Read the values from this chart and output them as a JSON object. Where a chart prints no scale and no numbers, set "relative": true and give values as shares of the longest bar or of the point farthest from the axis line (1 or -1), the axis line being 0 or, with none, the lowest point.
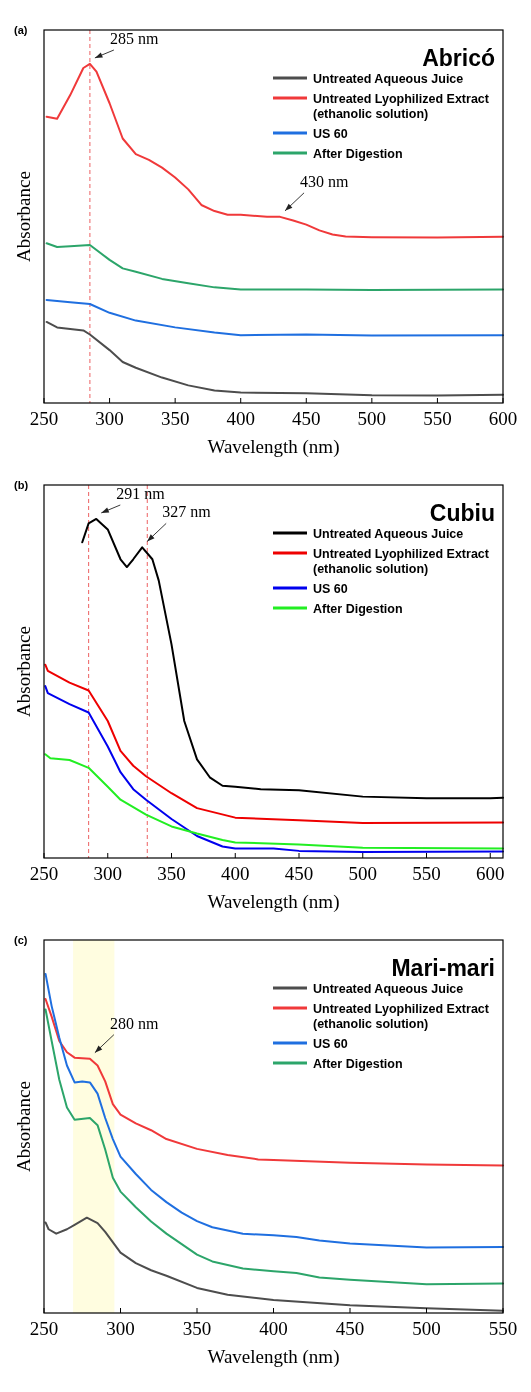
{
  "chart_data": [
    {
      "type": "line",
      "title": "Abricó",
      "xlabel": "Wavelength (nm)",
      "ylabel": "Absorbance",
      "relative": true,
      "xlim": [
        250,
        600
      ],
      "xticks": [
        250,
        300,
        350,
        400,
        450,
        500,
        550,
        600
      ],
      "legend": "top right",
      "annotations": [
        "(a)",
        {
          "text": "285 nm",
          "x": 285,
          "y": 1.0
        },
        {
          "text": "430 nm",
          "x": 430,
          "y": 0.549
        }
      ],
      "ref_lines": [
        {
          "axis": "x",
          "value": 285,
          "color": "#e8393a",
          "line_style": "dashed"
        }
      ],
      "series": [
        {
          "name": "Untreated Aqueous Juice",
          "color": "#4d4d4d",
          "x": [
            252,
            260,
            280,
            285,
            300,
            310,
            320,
            340,
            360,
            380,
            400,
            450,
            500,
            550,
            600
          ],
          "values": [
            0.239,
            0.223,
            0.214,
            0.202,
            0.156,
            0.121,
            0.104,
            0.075,
            0.052,
            0.037,
            0.031,
            0.029,
            0.023,
            0.022,
            0.024
          ]
        },
        {
          "name": "Untreated Lyophilized Extract (ethanolic solution)",
          "color": "#f0393a",
          "x": [
            252,
            260,
            270,
            280,
            285,
            290,
            300,
            310,
            320,
            330,
            340,
            350,
            360,
            370,
            380,
            390,
            400,
            420,
            430,
            440,
            450,
            460,
            470,
            480,
            500,
            550,
            600
          ],
          "values": [
            0.844,
            0.838,
            0.908,
            0.988,
            1.0,
            0.977,
            0.884,
            0.78,
            0.734,
            0.717,
            0.694,
            0.665,
            0.63,
            0.584,
            0.566,
            0.555,
            0.555,
            0.549,
            0.549,
            0.538,
            0.526,
            0.509,
            0.497,
            0.491,
            0.489,
            0.488,
            0.49
          ]
        },
        {
          "name": "US 60",
          "color": "#1f6fe0",
          "x": [
            252,
            270,
            285,
            300,
            320,
            350,
            380,
            400,
            450,
            500,
            600
          ],
          "values": [
            0.304,
            0.297,
            0.292,
            0.266,
            0.243,
            0.223,
            0.208,
            0.2,
            0.202,
            0.199,
            0.2
          ]
        },
        {
          "name": "After Digestion",
          "color": "#2ca56a",
          "x": [
            252,
            260,
            270,
            285,
            300,
            310,
            320,
            340,
            360,
            380,
            400,
            450,
            500,
            600
          ],
          "values": [
            0.471,
            0.46,
            0.462,
            0.466,
            0.422,
            0.397,
            0.387,
            0.366,
            0.353,
            0.341,
            0.335,
            0.335,
            0.333,
            0.335
          ]
        }
      ]
    },
    {
      "type": "line",
      "title": "Cubiu",
      "xlabel": "Wavelength (nm)",
      "ylabel": "Absorbance",
      "relative": true,
      "xlim": [
        250,
        610
      ],
      "xticks": [
        250,
        300,
        350,
        400,
        450,
        500,
        550,
        600
      ],
      "legend": "top right",
      "annotations": [
        "(b)",
        {
          "text": "291 nm",
          "x": 291,
          "y": 1.0
        },
        {
          "text": "327 nm",
          "x": 327,
          "y": 0.916
        }
      ],
      "ref_lines": [
        {
          "axis": "x",
          "value": 285,
          "color": "#e8393a",
          "line_style": "dashed"
        },
        {
          "axis": "x",
          "value": 331,
          "color": "#e8393a",
          "line_style": "dashed"
        }
      ],
      "series": [
        {
          "name": "Untreated Aqueous Juice",
          "color": "#000000",
          "x": [
            280,
            285,
            291,
            300,
            310,
            315,
            320,
            327,
            335,
            340,
            350,
            360,
            370,
            380,
            390,
            400,
            420,
            450,
            500,
            550,
            600,
            610
          ],
          "values": [
            0.931,
            0.987,
            1.0,
            0.969,
            0.881,
            0.858,
            0.881,
            0.916,
            0.881,
            0.818,
            0.63,
            0.404,
            0.291,
            0.238,
            0.213,
            0.21,
            0.203,
            0.2,
            0.181,
            0.176,
            0.176,
            0.178
          ]
        },
        {
          "name": "Untreated Lyophilized Extract (ethanolic solution)",
          "color": "#ee0000",
          "x": [
            251,
            253,
            270,
            285,
            300,
            310,
            320,
            330,
            350,
            370,
            400,
            450,
            500,
            610
          ],
          "values": [
            0.57,
            0.552,
            0.517,
            0.494,
            0.404,
            0.316,
            0.272,
            0.241,
            0.191,
            0.147,
            0.119,
            0.111,
            0.103,
            0.105
          ]
        },
        {
          "name": "US 60",
          "color": "#0000ee",
          "x": [
            251,
            253,
            270,
            285,
            300,
            310,
            320,
            330,
            350,
            370,
            390,
            400,
            430,
            450,
            500,
            610
          ],
          "values": [
            0.507,
            0.486,
            0.454,
            0.429,
            0.329,
            0.253,
            0.203,
            0.172,
            0.115,
            0.065,
            0.034,
            0.028,
            0.028,
            0.021,
            0.018,
            0.019
          ]
        },
        {
          "name": "After Digestion",
          "color": "#22ee22",
          "x": [
            251,
            255,
            270,
            285,
            300,
            310,
            330,
            350,
            370,
            390,
            400,
            450,
            500,
            610
          ],
          "values": [
            0.306,
            0.294,
            0.289,
            0.266,
            0.21,
            0.172,
            0.128,
            0.093,
            0.072,
            0.053,
            0.046,
            0.04,
            0.03,
            0.028
          ]
        }
      ]
    },
    {
      "type": "line",
      "title": "Mari-mari",
      "xlabel": "Wavelength (nm)",
      "ylabel": "Absorbance",
      "relative": true,
      "xlim": [
        250,
        550
      ],
      "xticks": [
        250,
        300,
        350,
        400,
        450,
        500,
        550
      ],
      "legend": "top right",
      "annotations": [
        "(c)",
        {
          "text": "280 nm",
          "x": 280,
          "y": 0.75
        }
      ],
      "bands": [
        {
          "axis": "x",
          "from": 269,
          "to": 296,
          "color": "#fffde0"
        }
      ],
      "series": [
        {
          "name": "Untreated Aqueous Juice",
          "color": "#4d4d4d",
          "x": [
            251,
            253,
            258,
            265,
            270,
            278,
            285,
            290,
            300,
            310,
            320,
            330,
            350,
            370,
            400,
            450,
            500,
            550
          ],
          "values": [
            0.267,
            0.247,
            0.234,
            0.247,
            0.26,
            0.281,
            0.265,
            0.239,
            0.178,
            0.147,
            0.126,
            0.11,
            0.074,
            0.054,
            0.038,
            0.023,
            0.014,
            0.007
          ]
        },
        {
          "name": "Untreated Lyophilized Extract (ethanolic solution)",
          "color": "#f0393a",
          "x": [
            251,
            255,
            260,
            265,
            270,
            280,
            285,
            290,
            295,
            300,
            310,
            320,
            330,
            350,
            370,
            390,
            400,
            450,
            500,
            550
          ],
          "values": [
            0.926,
            0.874,
            0.802,
            0.769,
            0.753,
            0.75,
            0.73,
            0.683,
            0.616,
            0.585,
            0.559,
            0.539,
            0.513,
            0.484,
            0.466,
            0.453,
            0.451,
            0.443,
            0.438,
            0.435
          ]
        },
        {
          "name": "US 60",
          "color": "#1f6fe0",
          "x": [
            251,
            255,
            260,
            265,
            270,
            275,
            280,
            285,
            290,
            295,
            300,
            310,
            320,
            330,
            340,
            350,
            360,
            380,
            400,
            415,
            430,
            450,
            500,
            550
          ],
          "values": [
            1.0,
            0.905,
            0.812,
            0.73,
            0.68,
            0.683,
            0.68,
            0.647,
            0.575,
            0.513,
            0.461,
            0.41,
            0.363,
            0.327,
            0.296,
            0.271,
            0.253,
            0.234,
            0.229,
            0.224,
            0.214,
            0.205,
            0.193,
            0.195
          ]
        },
        {
          "name": "After Digestion",
          "color": "#2ca56a",
          "x": [
            251,
            255,
            260,
            265,
            270,
            280,
            285,
            290,
            295,
            300,
            310,
            320,
            330,
            340,
            350,
            360,
            380,
            400,
            415,
            430,
            450,
            500,
            550
          ],
          "values": [
            0.895,
            0.802,
            0.688,
            0.606,
            0.57,
            0.575,
            0.554,
            0.482,
            0.399,
            0.358,
            0.312,
            0.27,
            0.234,
            0.203,
            0.172,
            0.152,
            0.131,
            0.123,
            0.118,
            0.105,
            0.098,
            0.085,
            0.087
          ]
        }
      ]
    }
  ]
}
